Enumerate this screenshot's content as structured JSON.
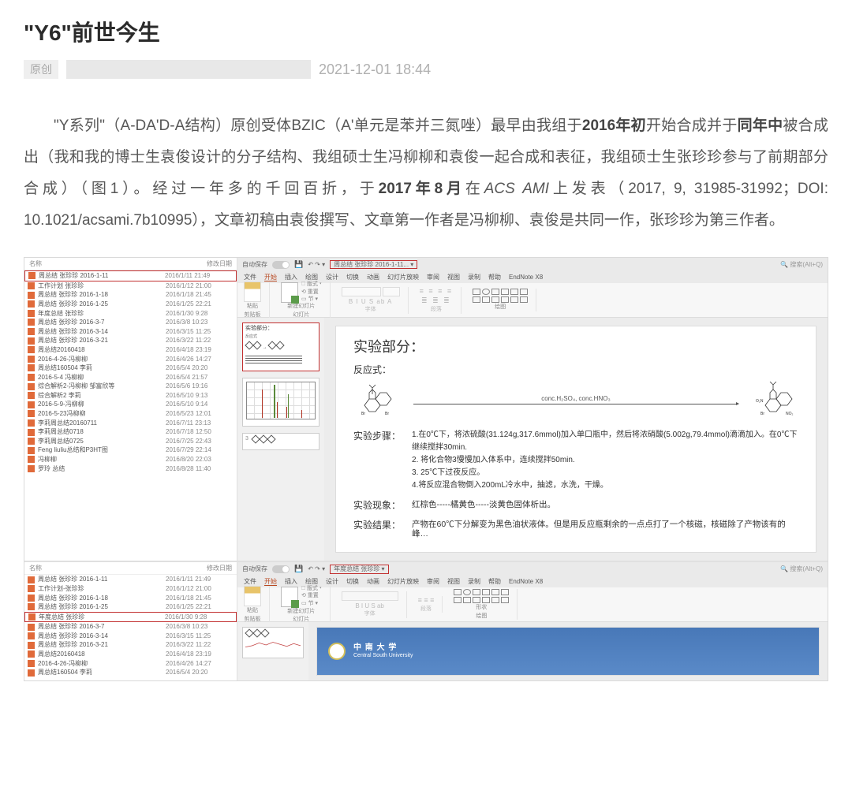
{
  "article": {
    "title": "\"Y6\"前世今生",
    "orig_tag": "原创",
    "timestamp": "2021-12-01 18:44",
    "body_html": "\"Y系列\"（A-DA'D-A结构）原创受体BZIC（A'单元是苯并三氮唑）最早由我组于<b>2016年初</b>开始合成并于<b>同年中</b>被合成出（我和我的博士生袁俊设计的分子结构、我组硕士生冯柳柳和袁俊一起合成和表征，我组硕士生张珍珍参与了前期部分合成）（图1）。经过一年多的千回百折，于<b>2017年8月</b>在<i>ACS AMI</i>上发表（2017, 9, 31985-31992；DOI: 10.1021/acsami.7b10995），文章初稿由袁俊撰写、文章第一作者是冯柳柳、袁俊是共同一作，张珍珍为第三作者。"
  },
  "screenshot": {
    "file_headers": {
      "name": "名称",
      "date": "修改日期"
    },
    "files_top": [
      {
        "n": "周总结 张珍珍 2016-1-11",
        "d": "2016/1/11 21:49",
        "hl": true
      },
      {
        "n": "工作计划 张珍珍",
        "d": "2016/1/12 21:00"
      },
      {
        "n": "周总结 张珍珍 2016-1-18",
        "d": "2016/1/18 21:45"
      },
      {
        "n": "周总结 张珍珍 2016-1-25",
        "d": "2016/1/25 22:21"
      },
      {
        "n": "年度总结 张珍珍",
        "d": "2016/1/30 9:28"
      },
      {
        "n": "周总结 张珍珍 2016-3-7",
        "d": "2016/3/8 10:23"
      },
      {
        "n": "周总结 张珍珍 2016-3-14",
        "d": "2016/3/15 11:25"
      },
      {
        "n": "周总结 张珍珍 2016-3-21",
        "d": "2016/3/22 11:22"
      },
      {
        "n": "周总结20160418",
        "d": "2016/4/18 23:19"
      },
      {
        "n": "2016-4-26-冯柳柳",
        "d": "2016/4/26 14:27"
      },
      {
        "n": "周总结160504 李莉",
        "d": "2016/5/4 20:20"
      },
      {
        "n": "2016-5-4 冯柳柳",
        "d": "2016/5/4 21:57"
      },
      {
        "n": "综合解析2-冯柳柳 邹富欣等",
        "d": "2016/5/6 19:16"
      },
      {
        "n": "综合解析2 李莉",
        "d": "2016/5/10 9:13"
      },
      {
        "n": "2016-5-9-冯柳柳",
        "d": "2016/5/10 9:14"
      },
      {
        "n": "2016-5-23冯柳柳",
        "d": "2016/5/23 12:01"
      },
      {
        "n": "李莉周总结20160711",
        "d": "2016/7/11 23:13"
      },
      {
        "n": "李莉周总结0718",
        "d": "2016/7/18 12:50"
      },
      {
        "n": "李莉周总结0725",
        "d": "2016/7/25 22:43"
      },
      {
        "n": "Feng liuliu总结和P3HT图",
        "d": "2016/7/29 22:14"
      },
      {
        "n": "冯柳柳",
        "d": "2016/8/20 22:03"
      },
      {
        "n": "罗玲 总结",
        "d": "2016/8/28 11:40"
      }
    ],
    "files_bottom": [
      {
        "n": "周总结 张珍珍 2016-1-11",
        "d": "2016/1/11 21:49"
      },
      {
        "n": "工作计划-张珍珍",
        "d": "2016/1/12 21:00"
      },
      {
        "n": "周总结 张珍珍 2016-1-18",
        "d": "2016/1/18 21:45"
      },
      {
        "n": "周总结 张珍珍 2016-1-25",
        "d": "2016/1/25 22:21"
      },
      {
        "n": "年度总结 张珍珍",
        "d": "2016/1/30 9:28",
        "hl": true
      },
      {
        "n": "周总结 张珍珍 2016-3-7",
        "d": "2016/3/8 10:23"
      },
      {
        "n": "周总结 张珍珍 2016-3-14",
        "d": "2016/3/15 11:25"
      },
      {
        "n": "周总结 张珍珍 2016-3-21",
        "d": "2016/3/22 11:22"
      },
      {
        "n": "周总结20160418",
        "d": "2016/4/18 23:19"
      },
      {
        "n": "2016-4-26-冯柳柳",
        "d": "2016/4/26 14:27"
      },
      {
        "n": "周总结160504 李莉",
        "d": "2016/5/4 20:20"
      }
    ],
    "ppt_top": {
      "autosave": "自动保存",
      "docname": "周总结 张珍珍 2016-1-11... ▾",
      "search": "🔍 搜索(Alt+Q)",
      "tabs": [
        "文件",
        "开始",
        "插入",
        "绘图",
        "设计",
        "切换",
        "动画",
        "幻灯片放映",
        "审阅",
        "视图",
        "录制",
        "帮助",
        "EndNote X8"
      ],
      "ribbon_labels": {
        "clipboard": "剪贴板",
        "slides": "幻灯片",
        "font": "字体",
        "paragraph": "段落",
        "drawing": "绘图",
        "paste": "粘贴",
        "newslide": "新建幻灯片",
        "layout": "🗆 版式 ▾",
        "reset": "⟲ 重置",
        "section": "▭ 节 ▾"
      },
      "slide": {
        "title": "实验部分：",
        "rxn_label": "反应式：",
        "conditions_top": "conc.H₂SO₄, conc.HNO₃",
        "steps_label": "实验步骤：",
        "steps": [
          "1.在0℃下，将浓硫酸(31.124g,317.6mmol)加入单口瓶中，然后将浓硝酸(5.002g,79.4mmol)滴滴加入。在0℃下继续搅拌30min.",
          "2. 将化合物3慢慢加入体系中，连续搅拌50min.",
          "3. 25℃下过夜反应。",
          "4.将反应混合物倒入200mL冷水中，抽滤，水洗，干燥。"
        ],
        "phen_label": "实验现象：",
        "phen": "红棕色-----橘黄色-----淡黄色固体析出。",
        "result_label": "实验结果：",
        "result": "产物在60℃下分解变为黑色油状液体。但是用反应瓶剩余的一点点打了一个核磁，核磁除了产物该有的峰…"
      },
      "thumb1": {
        "title": "实验部分："
      },
      "thumb3_num": "3"
    },
    "ppt_bottom": {
      "autosave": "自动保存",
      "docname": "年度总结 张珍珍 ▾",
      "search": "🔍 搜索(Alt+Q)",
      "tabs": [
        "文件",
        "开始",
        "插入",
        "绘图",
        "设计",
        "切换",
        "动画",
        "幻灯片放映",
        "审阅",
        "视图",
        "录制",
        "帮助",
        "EndNote X8"
      ],
      "csu_text": "Central South University"
    }
  }
}
